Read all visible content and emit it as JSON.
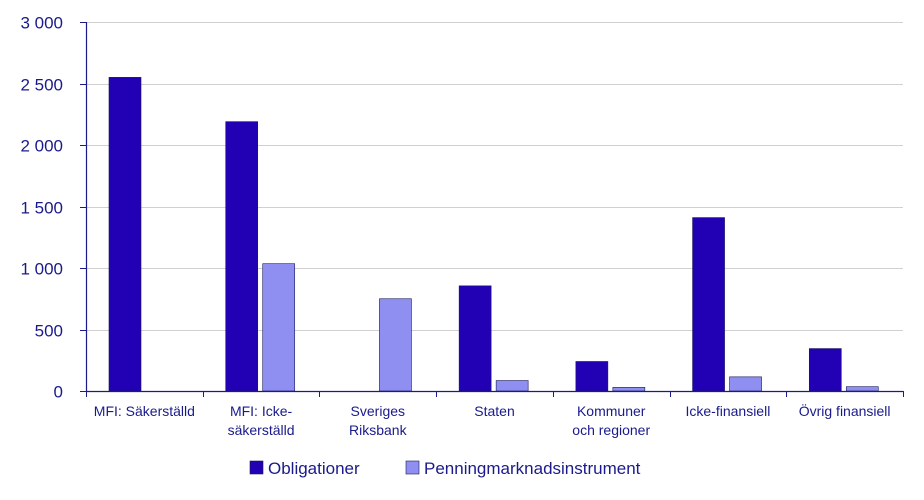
{
  "chart_data": {
    "type": "bar",
    "categories": [
      [
        "MFI: Säkerställd"
      ],
      [
        "MFI: Icke-",
        "säkerställd"
      ],
      [
        "Sveriges",
        "Riksbank"
      ],
      [
        "Staten"
      ],
      [
        "Kommuner",
        "och regioner"
      ],
      [
        "Icke-finansiell"
      ],
      [
        "Övrig finansiell"
      ]
    ],
    "series": [
      {
        "name": "Obligationer",
        "color": "#2200b4",
        "values": [
          2550,
          2190,
          0,
          855,
          240,
          1410,
          345
        ]
      },
      {
        "name": "Penningmarknadsinstrument",
        "color": "#8f8ff2",
        "values": [
          0,
          1035,
          750,
          85,
          30,
          115,
          35
        ]
      }
    ],
    "ylim": [
      0,
      3000
    ],
    "yticks": [
      0,
      500,
      1000,
      1500,
      2000,
      2500,
      3000
    ],
    "ytick_labels": [
      "0",
      "500",
      "1 000",
      "1 500",
      "2 000",
      "2 500",
      "3 000"
    ],
    "title": "",
    "xlabel": "",
    "ylabel": "",
    "grid": "horizontal",
    "legend_position": "bottom"
  }
}
